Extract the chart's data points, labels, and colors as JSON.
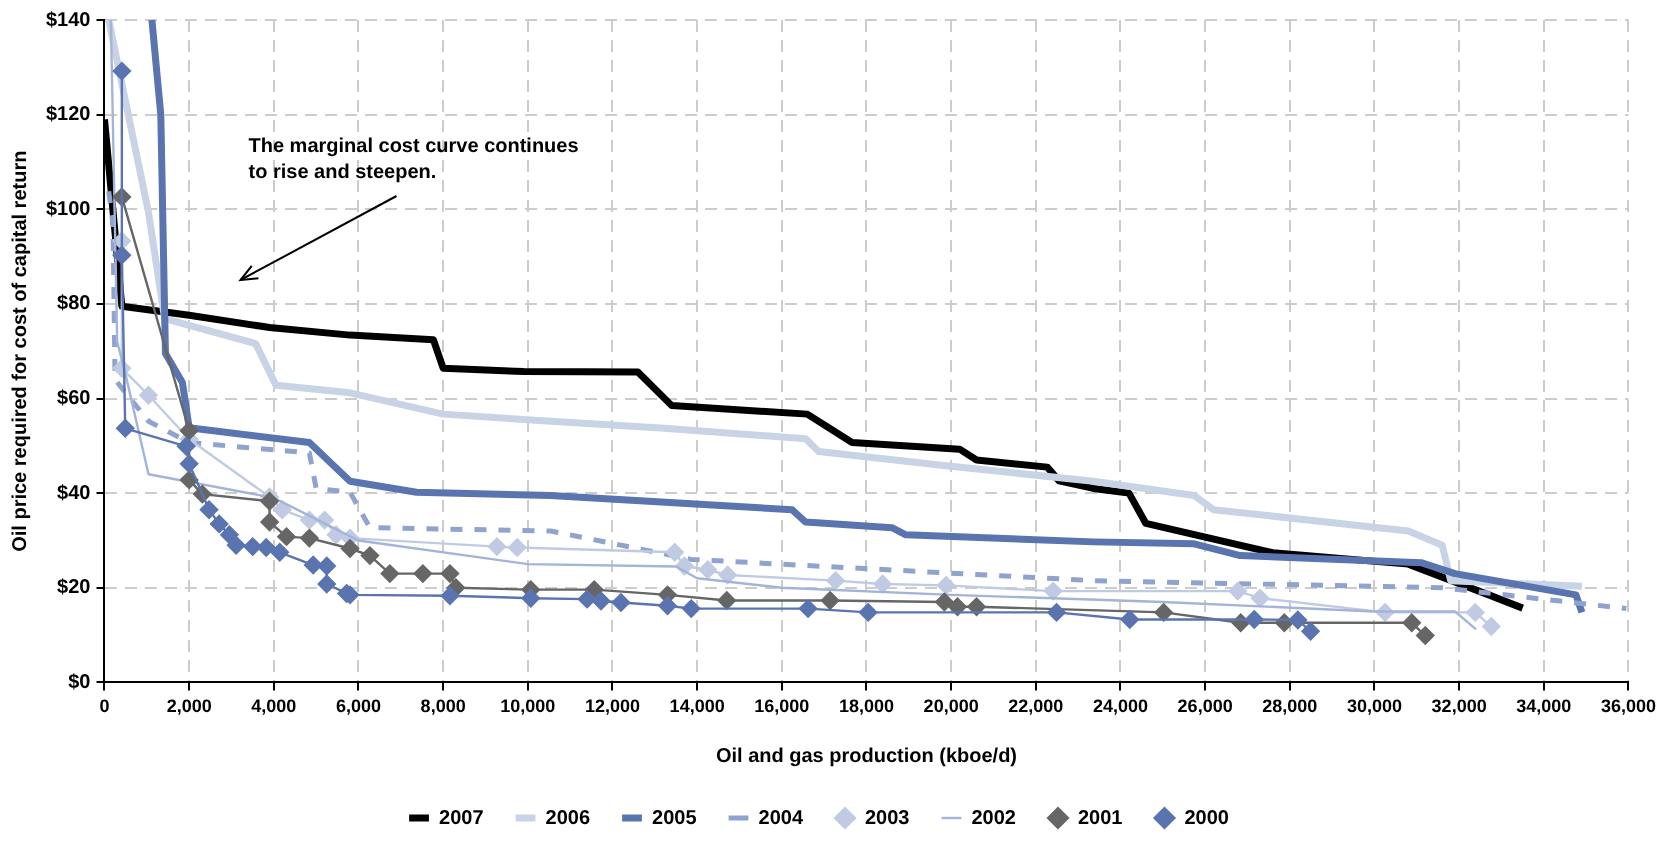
{
  "chart_data": {
    "type": "line",
    "xlabel": "Oil and gas production (kboe/d)",
    "ylabel": "Oil price required for cost of capital return",
    "xlim": [
      0,
      36000
    ],
    "ylim": [
      0,
      140
    ],
    "xticks": [
      0,
      {
        "value": 2000,
        "label": "2,000"
      },
      {
        "value": 4000,
        "label": "4,000"
      },
      {
        "value": 6000,
        "label": "6,000"
      },
      {
        "value": 8000,
        "label": "8,000"
      },
      {
        "value": 10000,
        "label": "10,000"
      },
      {
        "value": 12000,
        "label": "12,000"
      },
      {
        "value": 14000,
        "label": "14,000"
      },
      {
        "value": 16000,
        "label": "16,000"
      },
      {
        "value": 18000,
        "label": "18,000"
      },
      {
        "value": 20000,
        "label": "20,000"
      },
      {
        "value": 22000,
        "label": "22,000"
      },
      {
        "value": 24000,
        "label": "24,000"
      },
      {
        "value": 26000,
        "label": "26,000"
      },
      {
        "value": 28000,
        "label": "28,000"
      },
      {
        "value": 30000,
        "label": "30,000"
      },
      {
        "value": 32000,
        "label": "32,000"
      },
      {
        "value": 34000,
        "label": "34,000"
      },
      {
        "value": 36000,
        "label": "36,000"
      }
    ],
    "yticks": [
      {
        "value": 0,
        "label": "$0"
      },
      {
        "value": 20,
        "label": "$20"
      },
      {
        "value": 40,
        "label": "$40"
      },
      {
        "value": 60,
        "label": "$60"
      },
      {
        "value": 80,
        "label": "$80"
      },
      {
        "value": 100,
        "label": "$100"
      },
      {
        "value": 120,
        "label": "$120"
      },
      {
        "value": 140,
        "label": "$140"
      }
    ],
    "grid": true,
    "legend": "bottom",
    "annotations": [
      "The marginal cost curve continues to rise and steepen."
    ],
    "series": [
      {
        "name": "2007",
        "color": "#000000",
        "marker": "none",
        "line_style": "solid",
        "x": [
          0,
          410,
          2000,
          3900,
          5800,
          7770,
          8000,
          9900,
          12600,
          13400,
          16600,
          17660,
          20200,
          20600,
          22270,
          22550,
          23360,
          24200,
          24600,
          27600,
          30800,
          32700,
          33500
        ],
        "values": [
          119,
          79.5,
          77.6,
          75,
          73.4,
          72.4,
          66.4,
          65.7,
          65.6,
          58.5,
          56.7,
          50.7,
          49.3,
          47,
          45.5,
          42.6,
          41,
          40,
          33.6,
          27.4,
          25,
          18.5,
          15.7
        ]
      },
      {
        "name": "2006",
        "color": "#c9d3e6",
        "marker": "none",
        "line_style": "solid",
        "x": [
          100,
          1040,
          1420,
          3570,
          4050,
          5800,
          8000,
          10540,
          13230,
          16560,
          16870,
          19880,
          23360,
          25740,
          26200,
          30800,
          31600,
          31800,
          34900
        ],
        "values": [
          140,
          99.3,
          76.9,
          71.6,
          62.8,
          61.2,
          56.7,
          55.2,
          53.7,
          51.5,
          48.8,
          45.8,
          42.5,
          39.5,
          36.5,
          32,
          29,
          21.5,
          20.3
        ]
      },
      {
        "name": "2005",
        "color": "#5a74b0",
        "marker": "none",
        "line_style": "solid",
        "x": [
          1120,
          1330,
          1440,
          1840,
          2000,
          4840,
          5800,
          7370,
          10540,
          16240,
          16560,
          18600,
          18930,
          23360,
          25740,
          26830,
          31100,
          31900,
          34760,
          34900
        ],
        "values": [
          140,
          120,
          69.5,
          63.4,
          53.8,
          50.7,
          42.5,
          40.2,
          39.5,
          36.5,
          33.9,
          32.7,
          31.2,
          29.7,
          29.3,
          26.8,
          25.3,
          23,
          18.5,
          14.8
        ]
      },
      {
        "name": "2004",
        "color": "#8fa3cf",
        "marker": "none",
        "line_style": "dashed",
        "x": [
          100,
          200,
          250,
          1040,
          2000,
          4840,
          5000,
          5800,
          6270,
          10540,
          13860,
          23360,
          31600,
          35950
        ],
        "values": [
          103.8,
          97,
          64,
          55.2,
          50.7,
          48.5,
          41,
          40.2,
          32.7,
          32,
          26,
          21.5,
          20,
          15.6
        ]
      },
      {
        "name": "2003",
        "color": "#c0cbe3",
        "marker": "diamond",
        "line_style": "solid",
        "x": [
          410,
          410,
          1040,
          2000,
          3900,
          4200,
          4840,
          5200,
          5470,
          5800,
          9270,
          9750,
          13470,
          13700,
          14250,
          14720,
          17270,
          18380,
          19880,
          22410,
          26770,
          27300,
          30250,
          32380,
          32760
        ],
        "values": [
          93.3,
          66.4,
          60.7,
          51.4,
          39.2,
          36.5,
          34.3,
          34.3,
          31.2,
          30.5,
          28.7,
          28.5,
          27.5,
          24.6,
          23.8,
          22.7,
          21.5,
          20.8,
          20.5,
          19.3,
          19.3,
          17.8,
          14.8,
          14.8,
          11.8
        ]
      },
      {
        "name": "2002",
        "color": "#a3b4d9",
        "marker": "none",
        "line_style": "solid",
        "x": [
          150,
          300,
          500,
          1040,
          4000,
          6000,
          10000,
          13500,
          14000,
          16000,
          20000,
          25000,
          30000,
          31900,
          32400
        ],
        "values": [
          140,
          72,
          65,
          44,
          39,
          30,
          25,
          24.5,
          22,
          20,
          18.5,
          17,
          15,
          15,
          11.2
        ]
      },
      {
        "name": "2001",
        "color": "#666666",
        "marker": "diamond",
        "line_style": "solid",
        "x": [
          410,
          2000,
          2000,
          2310,
          3900,
          3900,
          4300,
          4840,
          5800,
          6270,
          6740,
          7520,
          8160,
          8300,
          10070,
          11570,
          13300,
          14700,
          17140,
          19840,
          20150,
          20600,
          25020,
          26840,
          27870,
          30880,
          31200
        ],
        "values": [
          102.6,
          53.2,
          42.8,
          39.8,
          38.3,
          33.9,
          30.8,
          30.5,
          28.3,
          26.8,
          23,
          23,
          23,
          20,
          19.6,
          19.6,
          18.5,
          17.3,
          17.3,
          17,
          16,
          16,
          14.8,
          12.6,
          12.6,
          12.6,
          9.9
        ]
      },
      {
        "name": "2000",
        "color": "#5a74b0",
        "marker": "diamond",
        "line_style": "solid",
        "x": [
          410,
          410,
          490,
          1930,
          2000,
          2470,
          2710,
          2950,
          3110,
          3500,
          3820,
          4140,
          4930,
          5250,
          5250,
          5720,
          5800,
          8160,
          10070,
          11400,
          11730,
          12200,
          13300,
          13860,
          16620,
          18040,
          22490,
          24220,
          27160,
          28190,
          28490
        ],
        "values": [
          129.2,
          90.3,
          53.7,
          49.9,
          46.2,
          36.5,
          33.5,
          31.2,
          29,
          28.7,
          28.5,
          27.5,
          24.8,
          24.6,
          20.8,
          18.8,
          18.5,
          18.3,
          17.8,
          17.6,
          17.2,
          16.9,
          16.2,
          15.6,
          15.6,
          14.8,
          14.8,
          13.3,
          13.3,
          13.2,
          10.8
        ]
      }
    ]
  }
}
